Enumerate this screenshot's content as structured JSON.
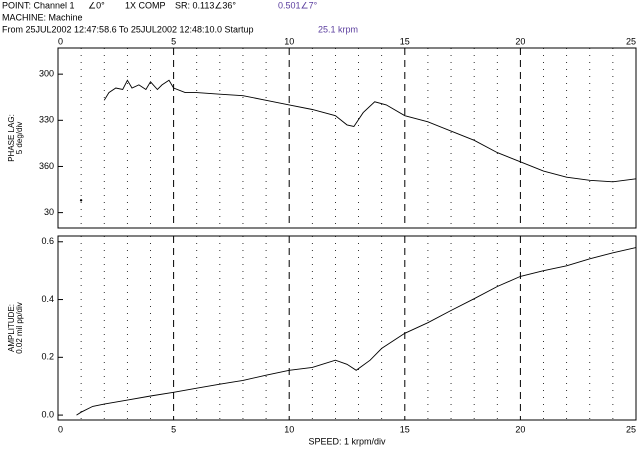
{
  "header": {
    "point": "POINT: Channel 1",
    "angle": "∠0°",
    "mode": "1X COMP",
    "sr": "SR: 0.113∠36°",
    "reading": "0.501∠7°",
    "machine": "MACHINE: Machine",
    "range": "From 25JUL2002 12:47:58.6 To 25JUL2002 12:48:10.0 Startup",
    "speed": "25.1 krpm"
  },
  "chart_data": [
    {
      "type": "line",
      "ylabel": [
        "PHASE LAG:",
        "5 deg/div"
      ],
      "x": [
        1.0,
        1.5,
        2.0,
        2.2,
        2.5,
        2.8,
        3.0,
        3.2,
        3.5,
        3.8,
        4.0,
        4.3,
        4.5,
        4.8,
        5.0,
        5.5,
        6,
        7,
        8,
        9,
        10,
        11,
        12,
        12.5,
        12.8,
        13.2,
        13.7,
        14.2,
        15,
        16,
        17,
        18,
        19,
        20,
        21,
        22,
        23,
        24,
        25
      ],
      "series": [
        {
          "color": "#000000",
          "values": [
            382,
            null,
            317,
            312,
            309,
            310,
            304,
            309,
            307,
            310,
            305,
            310,
            307,
            304,
            309,
            312,
            312,
            313,
            314,
            317,
            320,
            323,
            327,
            333,
            334,
            325,
            318,
            320,
            327,
            331,
            337,
            343,
            351,
            357,
            363,
            367,
            369,
            370,
            368
          ]
        }
      ],
      "xlim": [
        0,
        25
      ],
      "xticks": [
        0,
        5,
        10,
        15,
        20,
        25
      ],
      "ylim": [
        283,
        400
      ],
      "yinverted": true,
      "yticks": [
        300,
        330,
        360,
        {
          "value": 390,
          "label": "30"
        }
      ]
    },
    {
      "type": "line",
      "ylabel": [
        "AMPLITUDE:",
        "0.02 mil pp/div"
      ],
      "xlabel": "SPEED: 1 krpm/div",
      "x": [
        0.8,
        1.0,
        1.5,
        2,
        3,
        4,
        5,
        6,
        7,
        8,
        9,
        10,
        11,
        12,
        12.5,
        12.9,
        13.5,
        14,
        15,
        16,
        17,
        18,
        19,
        20,
        21,
        22,
        23,
        24,
        25
      ],
      "series": [
        {
          "color": "#000000",
          "values": [
            0.0,
            0.01,
            0.03,
            0.038,
            0.052,
            0.066,
            0.079,
            0.093,
            0.107,
            0.12,
            0.138,
            0.155,
            0.165,
            0.19,
            0.176,
            0.155,
            0.19,
            0.231,
            0.283,
            0.32,
            0.362,
            0.403,
            0.445,
            0.48,
            0.5,
            0.517,
            0.541,
            0.562,
            0.58
          ]
        }
      ],
      "xlim": [
        0,
        25
      ],
      "xticks": [
        0,
        5,
        10,
        15,
        20,
        25
      ],
      "ylim": [
        -0.017,
        0.62
      ],
      "yticks": [
        {
          "value": 0,
          "label": "0.0"
        },
        0.2,
        0.4,
        0.6
      ]
    }
  ]
}
